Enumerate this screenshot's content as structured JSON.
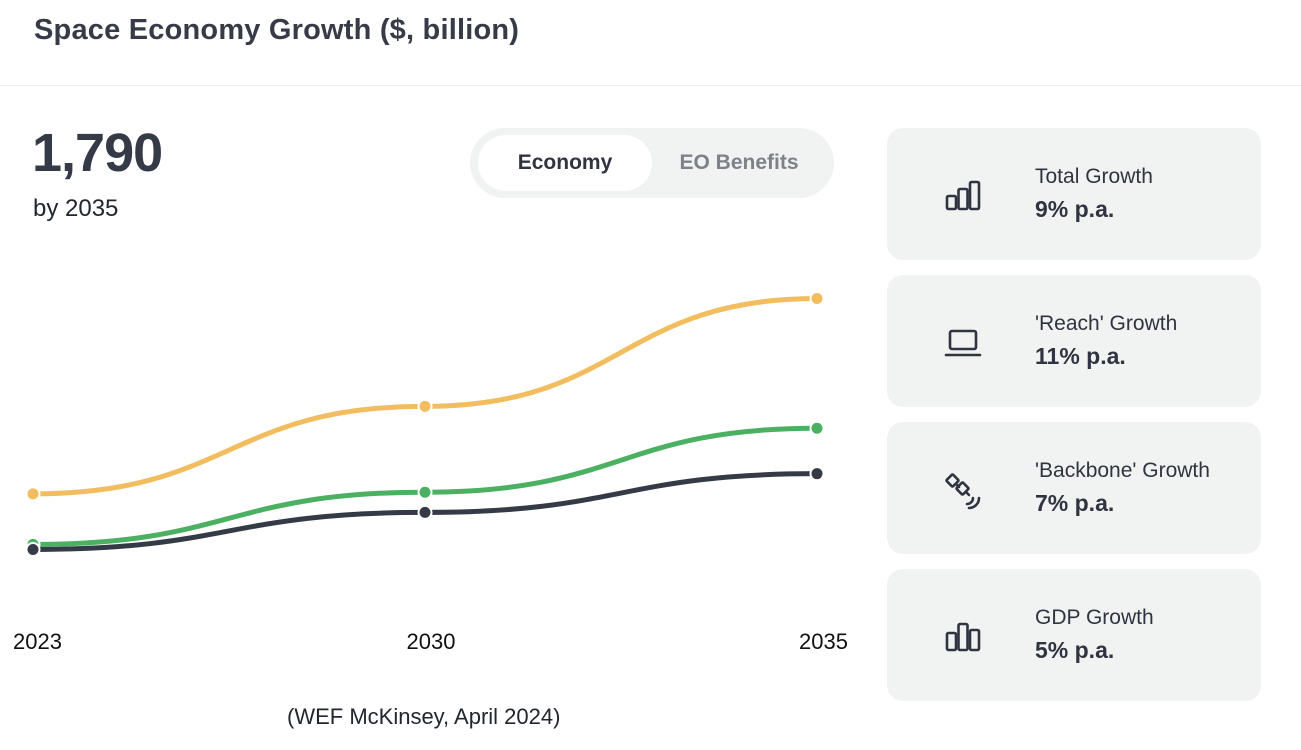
{
  "header": {
    "title": "Space Economy Growth ($, billion)"
  },
  "headline": {
    "value": "1,790",
    "subtitle": "by 2035"
  },
  "toggle": {
    "options": [
      "Economy",
      "EO Benefits"
    ],
    "selected": "Economy"
  },
  "source": "(WEF McKinsey, April 2024)",
  "cards": [
    {
      "icon": "bar-chart-ascending-icon",
      "label": "Total Growth",
      "value": "9% p.a."
    },
    {
      "icon": "laptop-icon",
      "label": "'Reach' Growth",
      "value": "11% p.a."
    },
    {
      "icon": "satellite-icon",
      "label": "'Backbone' Growth",
      "value": "7% p.a."
    },
    {
      "icon": "bar-chart-icon",
      "label": "GDP Growth",
      "value": "5% p.a."
    }
  ],
  "chart_data": {
    "type": "line",
    "title": "Space Economy Growth ($, billion)",
    "xlabel": "",
    "ylabel": "",
    "x": [
      "2023",
      "2030",
      "2035"
    ],
    "ylim": [
      0,
      1900
    ],
    "grid": false,
    "series": [
      {
        "name": "Total",
        "color": "#f2bd5f",
        "values": [
          630,
          1150,
          1790
        ]
      },
      {
        "name": "Reach",
        "color": "#4cb062",
        "values": [
          330,
          640,
          1020
        ]
      },
      {
        "name": "Backbone",
        "color": "#343a46",
        "values": [
          300,
          520,
          750
        ]
      }
    ]
  }
}
